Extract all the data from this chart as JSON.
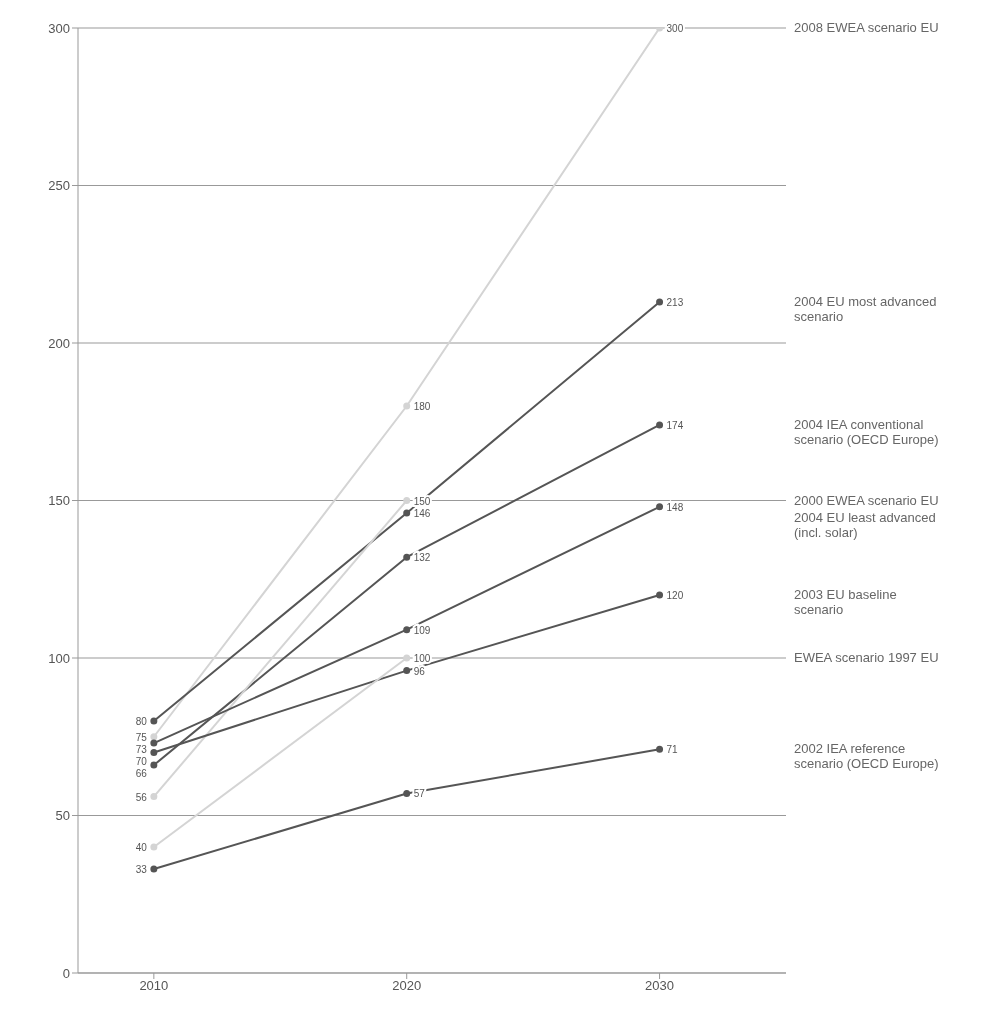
{
  "chart_data": {
    "type": "line",
    "categories": [
      "2010",
      "2020",
      "2030"
    ],
    "series": [
      {
        "name": "2008 EWEA scenario EU",
        "color": "#d4d4d4",
        "values": [
          75,
          180,
          300
        ]
      },
      {
        "name": "2004 EU most advanced scenario",
        "color": "#555555",
        "values": [
          80,
          146,
          213
        ]
      },
      {
        "name": "2004 IEA conventional scenario (OECD Europe)",
        "color": "#555555",
        "values": [
          66,
          132,
          174
        ]
      },
      {
        "name": "2000 EWEA scenario EU",
        "color": "#d4d4d4",
        "values": [
          56,
          150,
          null
        ]
      },
      {
        "name": "2004 EU least advanced (incl. solar)",
        "color": "#555555",
        "values": [
          73,
          109,
          148
        ]
      },
      {
        "name": "2003 EU baseline scenario",
        "color": "#555555",
        "values": [
          70,
          96,
          120
        ]
      },
      {
        "name": "EWEA scenario 1997 EU",
        "color": "#d4d4d4",
        "values": [
          40,
          100,
          null
        ]
      },
      {
        "name": "2002 IEA reference scenario (OECD Europe)",
        "color": "#555555",
        "values": [
          33,
          57,
          71
        ]
      }
    ],
    "ylim": [
      0,
      300
    ],
    "yticks": [
      0,
      50,
      100,
      150,
      200,
      250,
      300
    ],
    "grid": "y",
    "marker": "circle",
    "line_style": "solid",
    "data_labels": true
  }
}
